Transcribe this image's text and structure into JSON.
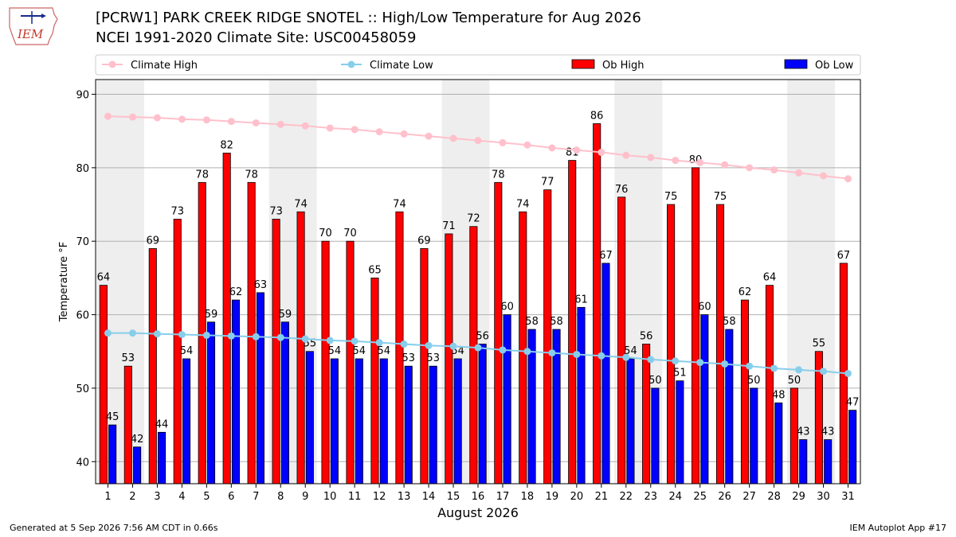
{
  "logo_text": "IEM",
  "header": {
    "title": "[PCRW1] PARK CREEK RIDGE SNOTEL :: High/Low Temperature for Aug 2026",
    "subtitle": "NCEI 1991-2020 Climate Site: USC00458059"
  },
  "footer": {
    "generated": "Generated at 5 Sep 2026 7:56 AM CDT in 0.66s",
    "app": "IEM Autoplot App #17"
  },
  "colors": {
    "ob_high": "#ff0000",
    "ob_low": "#0000ff",
    "climate_high": "#ffc0cb",
    "climate_low": "#87ceeb",
    "weekend_band": "#eeeeee"
  },
  "chart_data": {
    "type": "bar",
    "xlabel": "August 2026",
    "ylabel": "Temperature °F",
    "ylim": [
      37,
      92
    ],
    "yticks": [
      40,
      50,
      60,
      70,
      80,
      90
    ],
    "grid": true,
    "legend_position": "top",
    "shaded_day_pairs": [
      [
        1,
        2
      ],
      [
        8,
        9
      ],
      [
        15,
        16
      ],
      [
        22,
        23
      ],
      [
        29,
        30
      ]
    ],
    "categories": [
      "1",
      "2",
      "3",
      "4",
      "5",
      "6",
      "7",
      "8",
      "9",
      "10",
      "11",
      "12",
      "13",
      "14",
      "15",
      "16",
      "17",
      "18",
      "19",
      "20",
      "21",
      "22",
      "23",
      "24",
      "25",
      "26",
      "27",
      "28",
      "29",
      "30",
      "31"
    ],
    "series": [
      {
        "name": "Ob High",
        "kind": "bar",
        "values": [
          64,
          53,
          69,
          73,
          78,
          82,
          78,
          73,
          74,
          70,
          70,
          65,
          74,
          69,
          71,
          72,
          78,
          74,
          77,
          81,
          86,
          76,
          56,
          75,
          80,
          75,
          62,
          64,
          50,
          55,
          67
        ]
      },
      {
        "name": "Ob Low",
        "kind": "bar",
        "values": [
          45,
          42,
          44,
          54,
          59,
          62,
          63,
          59,
          55,
          54,
          54,
          54,
          53,
          53,
          54,
          56,
          60,
          58,
          58,
          61,
          67,
          54,
          50,
          51,
          60,
          58,
          50,
          48,
          43,
          43,
          47
        ]
      },
      {
        "name": "Climate High",
        "kind": "line",
        "values": [
          87.0,
          86.9,
          86.8,
          86.6,
          86.5,
          86.3,
          86.1,
          85.9,
          85.7,
          85.4,
          85.2,
          84.9,
          84.6,
          84.3,
          84.0,
          83.7,
          83.4,
          83.1,
          82.7,
          82.4,
          82.1,
          81.7,
          81.4,
          81.0,
          80.7,
          80.4,
          80.0,
          79.7,
          79.3,
          78.9,
          78.5
        ]
      },
      {
        "name": "Climate Low",
        "kind": "line",
        "values": [
          57.5,
          57.5,
          57.4,
          57.3,
          57.2,
          57.1,
          57.0,
          56.9,
          56.7,
          56.5,
          56.4,
          56.2,
          56.0,
          55.8,
          55.7,
          55.5,
          55.2,
          55.0,
          54.8,
          54.6,
          54.4,
          54.2,
          53.9,
          53.7,
          53.5,
          53.3,
          53.0,
          52.7,
          52.5,
          52.3,
          52.0
        ]
      }
    ]
  }
}
